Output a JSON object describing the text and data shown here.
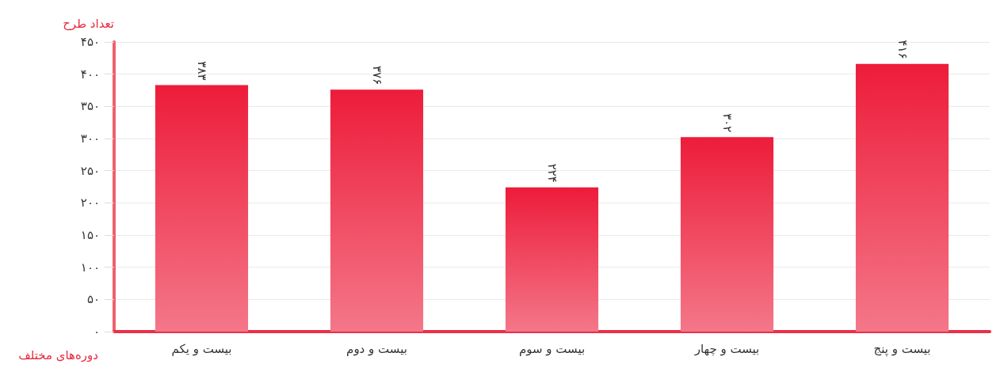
{
  "chart_data": {
    "type": "bar",
    "ylabel": "تعداد طرح",
    "xlabel": "دوره‌های مختلف",
    "categories": [
      "بیست و یکم",
      "بیست و دوم",
      "بیست و سوم",
      "بیست و چهار",
      "بیست و پنج"
    ],
    "values": [
      383,
      376,
      224,
      302,
      416
    ],
    "value_labels": [
      "۳۸۳",
      "۳۷۶",
      "۲۲۴",
      "۳۰۲",
      "۴۱۶"
    ],
    "color": "#ed1c3a",
    "ylim": [
      0,
      450
    ],
    "yticks": [
      {
        "value": 0,
        "label": "۰"
      },
      {
        "value": 50,
        "label": "۵۰"
      },
      {
        "value": 100,
        "label": "۱۰۰"
      },
      {
        "value": 150,
        "label": "۱۵۰"
      },
      {
        "value": 200,
        "label": "۲۰۰"
      },
      {
        "value": 250,
        "label": "۲۵۰"
      },
      {
        "value": 300,
        "label": "۳۰۰"
      },
      {
        "value": 350,
        "label": "۳۵۰"
      },
      {
        "value": 400,
        "label": "۴۰۰"
      },
      {
        "value": 450,
        "label": "۴۵۰"
      }
    ],
    "grid": "y"
  }
}
